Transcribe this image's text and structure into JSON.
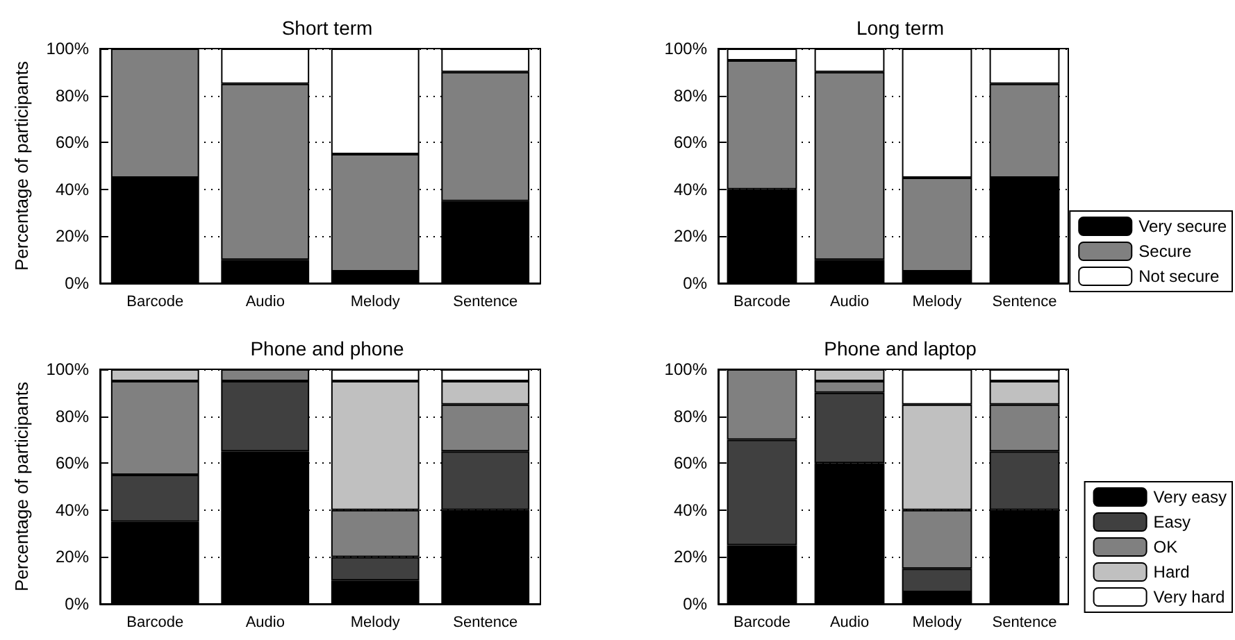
{
  "chart_data": [
    {
      "type": "bar",
      "title": "Short term",
      "ylabel": "Percentage of participants",
      "categories": [
        "Barcode",
        "Audio",
        "Melody",
        "Sentence"
      ],
      "stacked": true,
      "grid": "y",
      "legend": false,
      "ylim": [
        0,
        100
      ],
      "yticks": [
        {
          "value": 0,
          "label": "0%"
        },
        {
          "value": 20,
          "label": "20%"
        },
        {
          "value": 40,
          "label": "40%"
        },
        {
          "value": 60,
          "label": "60%"
        },
        {
          "value": 80,
          "label": "80%"
        },
        {
          "value": 100,
          "label": "100%"
        }
      ],
      "series": [
        {
          "color": "#000000",
          "values": [
            45,
            10,
            5,
            35
          ]
        },
        {
          "color": "#808080",
          "values": [
            55,
            75,
            50,
            55
          ]
        },
        {
          "color": "#ffffff",
          "values": [
            0,
            15,
            45,
            10
          ]
        }
      ]
    },
    {
      "type": "bar",
      "title": "Long term",
      "categories": [
        "Barcode",
        "Audio",
        "Melody",
        "Sentence"
      ],
      "stacked": true,
      "grid": "y",
      "legend": "bottom right",
      "ylim": [
        0,
        100
      ],
      "yticks": [
        {
          "value": 0,
          "label": "0%"
        },
        {
          "value": 20,
          "label": "20%"
        },
        {
          "value": 40,
          "label": "40%"
        },
        {
          "value": 60,
          "label": "60%"
        },
        {
          "value": 80,
          "label": "80%"
        },
        {
          "value": 100,
          "label": "100%"
        }
      ],
      "series": [
        {
          "name": "Very secure",
          "color": "#000000",
          "values": [
            40,
            10,
            5,
            45
          ]
        },
        {
          "name": "Secure",
          "color": "#808080",
          "values": [
            55,
            80,
            40,
            40
          ]
        },
        {
          "name": "Not secure",
          "color": "#ffffff",
          "values": [
            5,
            10,
            55,
            15
          ]
        }
      ]
    },
    {
      "type": "bar",
      "title": "Phone and phone",
      "ylabel": "Percentage of participants",
      "categories": [
        "Barcode",
        "Audio",
        "Melody",
        "Sentence"
      ],
      "stacked": true,
      "grid": "y",
      "legend": false,
      "ylim": [
        0,
        100
      ],
      "yticks": [
        {
          "value": 0,
          "label": "0%"
        },
        {
          "value": 20,
          "label": "20%"
        },
        {
          "value": 40,
          "label": "40%"
        },
        {
          "value": 60,
          "label": "60%"
        },
        {
          "value": 80,
          "label": "80%"
        },
        {
          "value": 100,
          "label": "100%"
        }
      ],
      "series": [
        {
          "color": "#000000",
          "values": [
            35,
            65,
            10,
            40
          ]
        },
        {
          "color": "#404040",
          "values": [
            20,
            30,
            10,
            25
          ]
        },
        {
          "color": "#808080",
          "values": [
            40,
            5,
            20,
            20
          ]
        },
        {
          "color": "#c0c0c0",
          "values": [
            5,
            0,
            55,
            10
          ]
        },
        {
          "color": "#ffffff",
          "values": [
            0,
            0,
            5,
            5
          ]
        }
      ]
    },
    {
      "type": "bar",
      "title": "Phone and laptop",
      "categories": [
        "Barcode",
        "Audio",
        "Melody",
        "Sentence"
      ],
      "stacked": true,
      "grid": "y",
      "legend": "bottom right",
      "ylim": [
        0,
        100
      ],
      "yticks": [
        {
          "value": 0,
          "label": "0%"
        },
        {
          "value": 20,
          "label": "20%"
        },
        {
          "value": 40,
          "label": "40%"
        },
        {
          "value": 60,
          "label": "60%"
        },
        {
          "value": 80,
          "label": "80%"
        },
        {
          "value": 100,
          "label": "100%"
        }
      ],
      "series": [
        {
          "name": "Very easy",
          "color": "#000000",
          "values": [
            25,
            60,
            5,
            40
          ]
        },
        {
          "name": "Easy",
          "color": "#404040",
          "values": [
            45,
            30,
            10,
            25
          ]
        },
        {
          "name": "OK",
          "color": "#808080",
          "values": [
            30,
            5,
            25,
            20
          ]
        },
        {
          "name": "Hard",
          "color": "#c0c0c0",
          "values": [
            0,
            5,
            45,
            10
          ]
        },
        {
          "name": "Very hard",
          "color": "#ffffff",
          "values": [
            0,
            0,
            15,
            5
          ]
        }
      ]
    }
  ]
}
